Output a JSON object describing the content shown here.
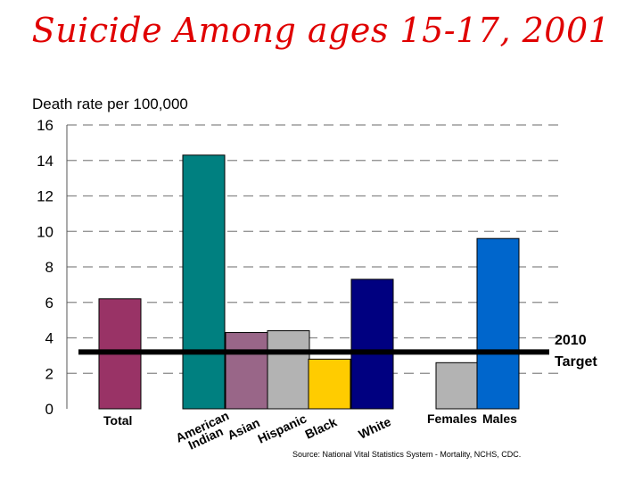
{
  "slide": {
    "title": "Suicide Among ages 15-17, 2001",
    "source": "Source: National Vital Statistics System - Mortality, NCHS, CDC."
  },
  "chart_data": {
    "type": "bar",
    "ylabel": "Death rate per 100,000",
    "xlabel": "",
    "ylim": [
      0,
      16
    ],
    "yticks": [
      0,
      2,
      4,
      6,
      8,
      10,
      12,
      14,
      16
    ],
    "grid": true,
    "categories": [
      "Total",
      "American Indian",
      "Asian",
      "Hispanic",
      "Black",
      "White",
      "Females",
      "Males"
    ],
    "values": [
      6.2,
      14.3,
      4.3,
      4.4,
      2.8,
      7.3,
      2.6,
      9.6
    ],
    "colors": [
      "#993366",
      "#008080",
      "#996688",
      "#b3b3b3",
      "#ffcc00",
      "#000080",
      "#b3b3b3",
      "#0066cc"
    ],
    "target": {
      "value": 3.2,
      "label_line1": "2010",
      "label_line2": "Target"
    }
  }
}
